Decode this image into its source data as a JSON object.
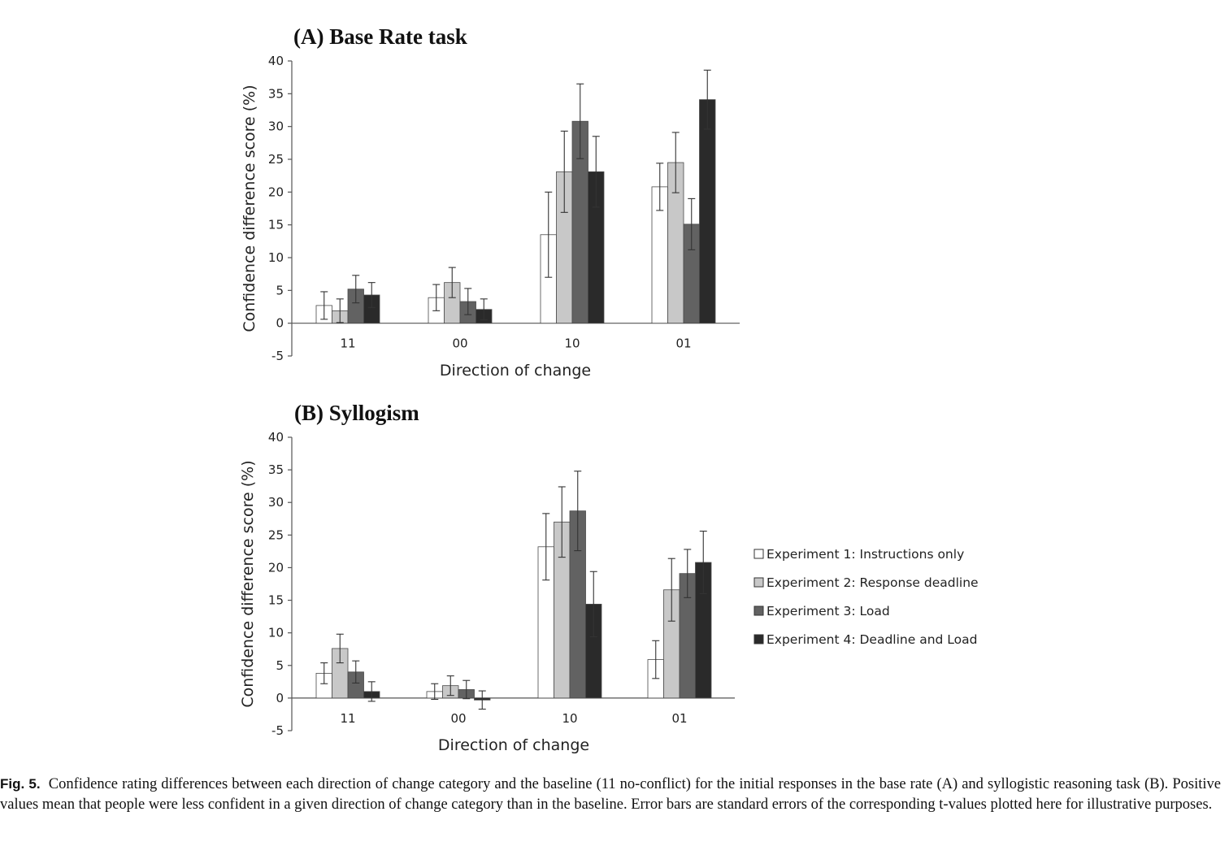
{
  "chart_data": [
    {
      "type": "bar",
      "title": "(A) Base Rate task",
      "xlabel": "Direction of change",
      "ylabel": "Confidence difference score (%)",
      "ylim": [
        -5,
        40
      ],
      "yticks": [
        "-5",
        "0",
        "5",
        "10",
        "15",
        "20",
        "25",
        "30",
        "35",
        "40"
      ],
      "categories": [
        "11",
        "00",
        "10",
        "01"
      ],
      "series": [
        {
          "name": "Experiment 1: Instructions only",
          "values": [
            2.7,
            3.9,
            13.5,
            20.8
          ],
          "errors": [
            2.1,
            2.0,
            6.5,
            3.6
          ]
        },
        {
          "name": "Experiment 2: Response deadline",
          "values": [
            1.9,
            6.2,
            23.1,
            24.5
          ],
          "errors": [
            1.8,
            2.3,
            6.2,
            4.6
          ]
        },
        {
          "name": "Experiment 3: Load",
          "values": [
            5.2,
            3.3,
            30.8,
            15.1
          ],
          "errors": [
            2.1,
            2.0,
            5.7,
            3.9
          ]
        },
        {
          "name": "Experiment 4: Deadline and Load",
          "values": [
            4.3,
            2.1,
            23.1,
            34.1
          ],
          "errors": [
            1.9,
            1.6,
            5.4,
            4.5
          ]
        }
      ],
      "error_bars": "standard errors",
      "grid": false
    },
    {
      "type": "bar",
      "title": "(B) Syllogism",
      "xlabel": "Direction of change",
      "ylabel": "Confidence difference score (%)",
      "ylim": [
        -5,
        40
      ],
      "yticks": [
        "-5",
        "0",
        "5",
        "10",
        "15",
        "20",
        "25",
        "30",
        "35",
        "40"
      ],
      "categories": [
        "11",
        "00",
        "10",
        "01"
      ],
      "series": [
        {
          "name": "Experiment 1: Instructions only",
          "values": [
            3.8,
            1.0,
            23.2,
            5.9
          ],
          "errors": [
            1.6,
            1.2,
            5.1,
            2.9
          ]
        },
        {
          "name": "Experiment 2: Response deadline",
          "values": [
            7.6,
            1.9,
            27.0,
            16.6
          ],
          "errors": [
            2.2,
            1.5,
            5.4,
            4.8
          ]
        },
        {
          "name": "Experiment 3: Load",
          "values": [
            4.0,
            1.3,
            28.7,
            19.1
          ],
          "errors": [
            1.7,
            1.4,
            6.1,
            3.7
          ]
        },
        {
          "name": "Experiment 4: Deadline and Load",
          "values": [
            1.0,
            -0.3,
            14.4,
            20.8
          ],
          "errors": [
            1.5,
            1.4,
            5.0,
            4.8
          ]
        }
      ],
      "error_bars": "standard errors",
      "grid": false,
      "legend": "right"
    }
  ],
  "colors": [
    "#ffffff",
    "#c8c8c8",
    "#626262",
    "#2a2a2a"
  ],
  "bar_stroke": "#4a4a4a",
  "caption": {
    "label": "Fig. 5.",
    "text": "Confidence rating differences between each direction of change category and the baseline (11 no-conflict) for the initial responses in the base rate (A) and syllogistic reasoning task (B). Positive values mean that people were less confident in a given direction of change category than in the baseline. Error bars are standard errors of the corresponding t-values plotted here for illustrative purposes."
  }
}
